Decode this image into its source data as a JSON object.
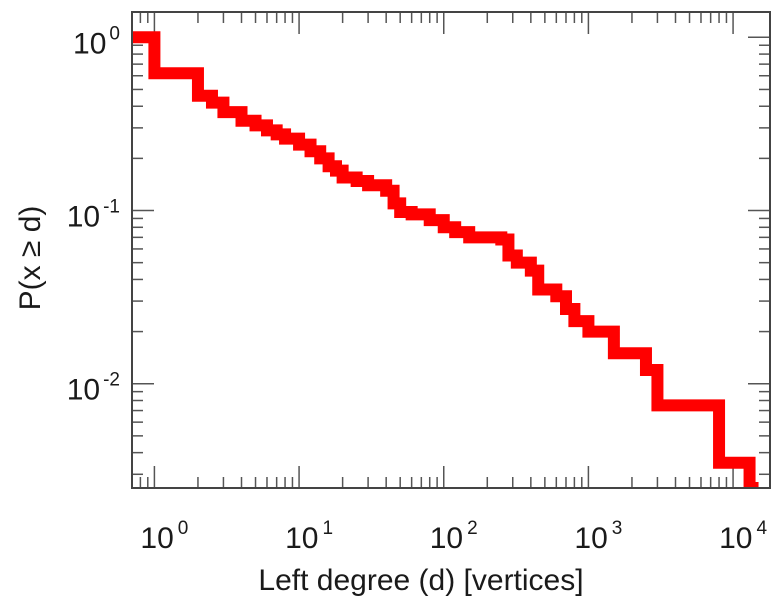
{
  "chart_data": {
    "type": "line",
    "title": "",
    "xlabel": "Left degree (d) [vertices]",
    "ylabel": "P(x ≥ d)",
    "xscale": "log",
    "yscale": "log",
    "xlim": [
      0.7,
      18000
    ],
    "ylim": [
      0.0025,
      1.4
    ],
    "grid": false,
    "legend": "none",
    "step": true,
    "series_color": "#ff0000",
    "x_ticks": [
      {
        "value": 1,
        "base": "10",
        "exp": "0"
      },
      {
        "value": 10,
        "base": "10",
        "exp": "1"
      },
      {
        "value": 100,
        "base": "10",
        "exp": "2"
      },
      {
        "value": 1000,
        "base": "10",
        "exp": "3"
      },
      {
        "value": 10000,
        "base": "10",
        "exp": "4"
      }
    ],
    "y_ticks": [
      {
        "value": 1,
        "base": "10",
        "exp": "0"
      },
      {
        "value": 0.1,
        "base": "10",
        "exp": "-1"
      },
      {
        "value": 0.01,
        "base": "10",
        "exp": "-2"
      }
    ],
    "series": [
      {
        "x": [
          0.7,
          1.0,
          2.0,
          2.5,
          3.0,
          4.0,
          5.0,
          6.0,
          7.0,
          8.0,
          10.0,
          12.0,
          14.0,
          16.0,
          18.0,
          20.0,
          25.0,
          30.0,
          40.0,
          45.0,
          50.0,
          60.0,
          80.0,
          100.0,
          120.0,
          150.0,
          250.0,
          280.0,
          320.0,
          400.0,
          450.0,
          600.0,
          700.0,
          800.0,
          1000.0,
          1500.0,
          2500.0,
          3000.0,
          8000.0,
          13000.0,
          15000.0
        ],
        "y": [
          1.0,
          0.62,
          0.46,
          0.42,
          0.37,
          0.33,
          0.31,
          0.29,
          0.275,
          0.26,
          0.24,
          0.22,
          0.2,
          0.18,
          0.17,
          0.155,
          0.148,
          0.14,
          0.13,
          0.11,
          0.098,
          0.095,
          0.088,
          0.08,
          0.075,
          0.07,
          0.068,
          0.055,
          0.05,
          0.045,
          0.035,
          0.032,
          0.027,
          0.023,
          0.02,
          0.015,
          0.012,
          0.0075,
          0.0035,
          0.0025,
          0.0025
        ]
      }
    ]
  }
}
